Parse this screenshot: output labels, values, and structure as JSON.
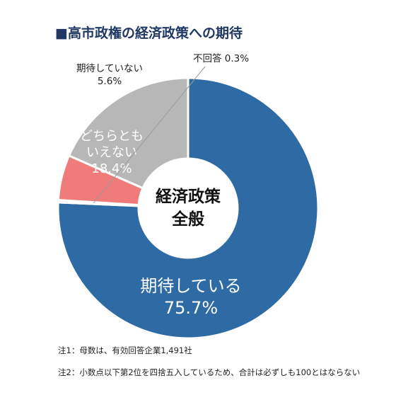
{
  "title": "■高市政権の経済政策への期待",
  "notes": {
    "note1": "注1：母数は、有効回答企業1,491社",
    "note2": "注2：小数点以下第2位を四捨五入しているため、合計は必ずしも100とはならない"
  },
  "colors": {
    "expect": "#2e6aa4",
    "neutral": "#b7b7b7",
    "not_expect": "#f07b7b",
    "no_answer": "#e0c0c0",
    "title": "#1f3864"
  },
  "chart_data": {
    "type": "pie",
    "donut": true,
    "center_label": [
      "経済政策",
      "全般"
    ],
    "categories": [
      "期待している",
      "不回答",
      "期待していない",
      "どちらともいえない"
    ],
    "values": [
      75.7,
      0.3,
      5.6,
      18.4
    ],
    "value_labels": [
      "75.7%",
      "0.3%",
      "5.6%",
      "18.4%"
    ],
    "slice_labels": [
      [
        "期待している",
        "75.7%"
      ],
      [
        "不回答 0.3%"
      ],
      [
        "期待していない",
        "5.6%"
      ],
      [
        "どちらとも",
        "いえない",
        "18.4%"
      ]
    ]
  }
}
